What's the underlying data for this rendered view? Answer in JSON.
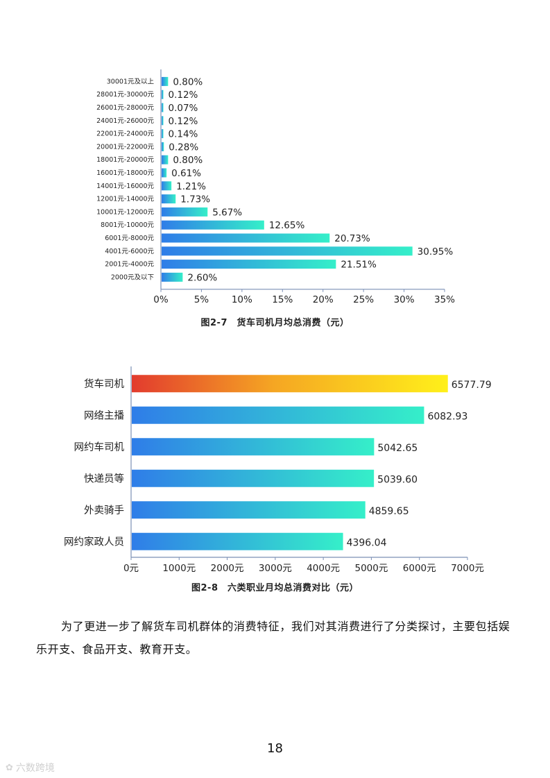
{
  "charts": {
    "chart_data": [
      {
        "type": "bar",
        "orientation": "horizontal",
        "categories": [
          "30001元及以上",
          "28001元-30000元",
          "26001元-28000元",
          "24001元-26000元",
          "22001元-24000元",
          "20001元-22000元",
          "18001元-20000元",
          "16001元-18000元",
          "14001元-16000元",
          "12001元-14000元",
          "10001元-12000元",
          "8001元-10000元",
          "6001元-8000元",
          "4001元-6000元",
          "2001元-4000元",
          "2000元及以下"
        ],
        "values": [
          0.8,
          0.12,
          0.07,
          0.12,
          0.14,
          0.28,
          0.8,
          0.61,
          1.21,
          1.73,
          5.67,
          12.65,
          20.73,
          30.95,
          21.51,
          2.6
        ],
        "value_labels": [
          "0.80%",
          "0.12%",
          "0.07%",
          "0.12%",
          "0.14%",
          "0.28%",
          "0.80%",
          "0.61%",
          "1.21%",
          "1.73%",
          "5.67%",
          "12.65%",
          "20.73%",
          "30.95%",
          "21.51%",
          "2.60%"
        ],
        "xlim": [
          0,
          35
        ],
        "xticks": [
          "0%",
          "5%",
          "10%",
          "15%",
          "20%",
          "25%",
          "30%",
          "35%"
        ],
        "title": "图2-7　货车司机月均总消费（元）",
        "bar_gradient": [
          "#2f7de8",
          "#35efc9"
        ]
      },
      {
        "type": "bar",
        "orientation": "horizontal",
        "categories": [
          "货车司机",
          "网络主播",
          "网约车司机",
          "快递员等",
          "外卖骑手",
          "网约家政人员"
        ],
        "values": [
          6577.79,
          6082.93,
          5042.65,
          5039.6,
          4859.65,
          4396.04
        ],
        "value_labels": [
          "6577.79",
          "6082.93",
          "5042.65",
          "5039.60",
          "4859.65",
          "4396.04"
        ],
        "xlim": [
          0,
          7000
        ],
        "xticks": [
          "0元",
          "1000元",
          "2000元",
          "3000元",
          "4000元",
          "5000元",
          "6000元",
          "7000元"
        ],
        "title": "图2-8　六类职业月均总消费对比（元）",
        "bar_gradient": [
          "#2f7de8",
          "#35efc9"
        ],
        "highlight_gradient": [
          "#e23b2e",
          "#f5b21a",
          "#fff01a"
        ]
      }
    ]
  },
  "text": {
    "paragraph": "为了更进一步了解货车司机群体的消费特征，我们对其消费进行了分类探讨，主要包括娱乐开支、食品开支、教育开支。",
    "page_number": "18",
    "watermark": "六数跨境"
  }
}
